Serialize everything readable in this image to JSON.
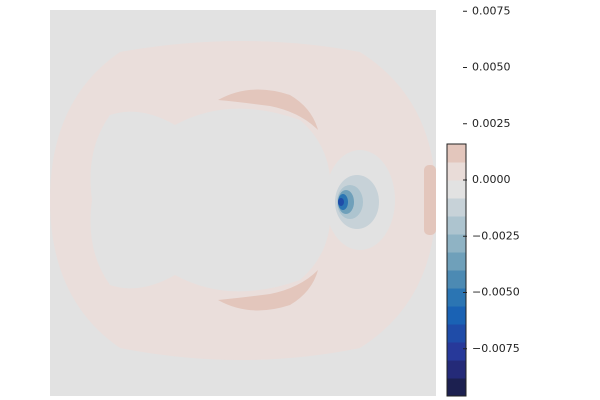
{
  "chart_data": {
    "type": "contourf",
    "levels": [
      -0.0096,
      -0.0088,
      -0.008,
      -0.0072,
      -0.0064,
      -0.0056,
      -0.0048,
      -0.004,
      -0.0032,
      -0.0024,
      -0.0016,
      -0.0008,
      0,
      0.0008,
      0.0016
    ],
    "colors": [
      "#1c2050",
      "#242a78",
      "#27399a",
      "#1f4ca8",
      "#1a62b4",
      "#2b75b3",
      "#4c8ab3",
      "#6fa0ba",
      "#8fb3c4",
      "#adc4cf",
      "#c7d2d8",
      "#e2e2e2",
      "#e9dcd8",
      "#e3c6bc"
    ],
    "ylim": [
      -0.0096,
      0.008
    ],
    "yticks": [
      {
        "value": -0.0075,
        "label": "−0.0075"
      },
      {
        "value": -0.005,
        "label": "−0.0050"
      },
      {
        "value": -0.0025,
        "label": "−0.0025"
      },
      {
        "value": 0,
        "label": "0.0000"
      },
      0.0025,
      {
        "value": 0.005,
        "label": "0.0050"
      },
      0.0075
    ]
  }
}
